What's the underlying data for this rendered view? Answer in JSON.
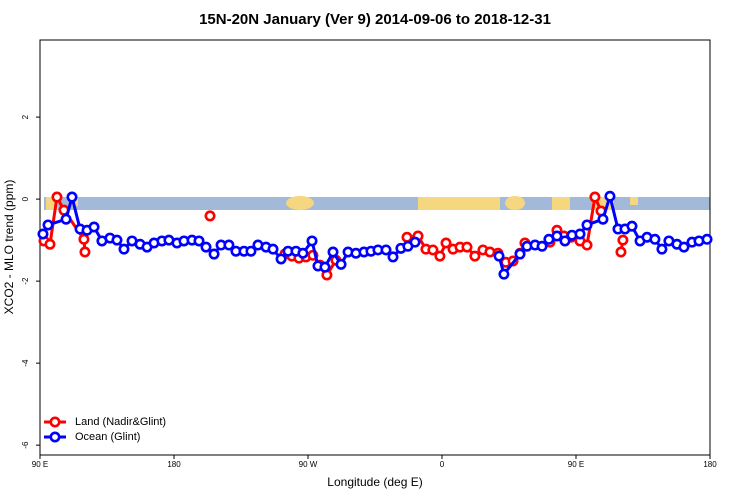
{
  "chart_data": {
    "type": "line",
    "title": "15N-20N January (Ver 9)   2014-09-06 to 2018-12-31",
    "x_label": "Longitude (deg E)",
    "y_label": "XCO2 - MLO trend (ppm)",
    "xlim": [
      90,
      540
    ],
    "ylim": [
      -6.24,
      3.88
    ],
    "xticks": [
      {
        "value": 90,
        "label": "90 E"
      },
      180,
      {
        "value": 270,
        "label": "90 W"
      },
      {
        "value": 360,
        "label": "0"
      },
      {
        "value": 450,
        "label": "90 E"
      },
      {
        "value": 540,
        "label": "180"
      }
    ],
    "yticks": [
      -6,
      -4,
      -2,
      0,
      2
    ],
    "legend": "bottom-left",
    "series": [
      {
        "name": "Land (Nadir&Glint)",
        "color": "#ff0000",
        "x": [
          92.7,
          96.7,
          101.4,
          106.1,
          119.5,
          120.2,
          150,
          204.2,
          250,
          254.5,
          259.2,
          263.9,
          268.6,
          273.3,
          278.0,
          282.7,
          288.8,
          320,
          336.5,
          343.9,
          349.2,
          353.9,
          358.6,
          362.7,
          367.4,
          372.1,
          376.8,
          382.1,
          387.5,
          392.2,
          397.6,
          402.9,
          407.7,
          412.4,
          415.7,
          430,
          432.5,
          437.2,
          441.9,
          446.6,
          452.7,
          457.4,
          462.7,
          466.8,
          470,
          480.2,
          481.5
        ],
        "values": [
          -1.02,
          -1.1,
          0.05,
          -0.27,
          -0.98,
          -1.29,
          null,
          -0.41,
          null,
          -1.34,
          -1.39,
          -1.44,
          -1.41,
          -1.37,
          -1.61,
          -1.85,
          -1.49,
          null,
          -0.93,
          -0.9,
          -1.22,
          -1.24,
          -1.39,
          -1.07,
          -1.22,
          -1.17,
          -1.17,
          -1.39,
          -1.24,
          -1.29,
          -1.32,
          -1.54,
          -1.51,
          -1.32,
          -1.07,
          null,
          -1.05,
          -0.76,
          -0.9,
          -0.93,
          -1.02,
          -1.12,
          0.05,
          -0.29,
          null,
          -1.29,
          -1.0
        ]
      },
      {
        "name": "Ocean (Glint)",
        "color": "#0000ff",
        "x": [
          92.0,
          95.4,
          107.5,
          111.5,
          116.9,
          121.6,
          126.3,
          131.6,
          137.0,
          141.7,
          146.4,
          151.8,
          157.2,
          161.9,
          166.6,
          171.9,
          176.6,
          182.0,
          186.7,
          192.1,
          196.8,
          201.5,
          206.9,
          211.6,
          216.9,
          221.6,
          227.0,
          231.7,
          236.4,
          241.8,
          246.5,
          251.9,
          256.6,
          261.9,
          266.6,
          272.7,
          276.7,
          281.4,
          286.8,
          292.2,
          296.9,
          302.2,
          307.6,
          312.3,
          317.0,
          322.4,
          327.1,
          332.4,
          337.1,
          341.9,
          380.0,
          398.3,
          401.6,
          412.4,
          417.1,
          422.5,
          427.2,
          431.8,
          437.2,
          442.6,
          447.3,
          452.7,
          457.4,
          468.1,
          472.8,
          478.2,
          482.9,
          487.6,
          493.0,
          497.7,
          503.0,
          507.7,
          512.4,
          517.8,
          522.5,
          527.9,
          532.6,
          538.0
        ],
        "values": [
          -0.85,
          -0.63,
          -0.49,
          0.05,
          -0.73,
          -0.76,
          -0.68,
          -1.02,
          -0.95,
          -1.0,
          -1.22,
          -1.02,
          -1.1,
          -1.17,
          -1.07,
          -1.02,
          -1.0,
          -1.07,
          -1.02,
          -1.0,
          -1.02,
          -1.17,
          -1.34,
          -1.12,
          -1.12,
          -1.27,
          -1.27,
          -1.27,
          -1.12,
          -1.17,
          -1.22,
          -1.46,
          -1.27,
          -1.27,
          -1.32,
          -1.02,
          -1.63,
          -1.66,
          -1.29,
          -1.59,
          -1.29,
          -1.32,
          -1.29,
          -1.27,
          -1.24,
          -1.24,
          -1.41,
          -1.2,
          -1.15,
          -1.05,
          null,
          -1.39,
          -1.83,
          -1.34,
          -1.15,
          -1.12,
          -1.15,
          -0.98,
          -0.9,
          -1.02,
          -0.88,
          -0.85,
          -0.63,
          -0.49,
          0.07,
          -0.73,
          -0.73,
          -0.66,
          -1.02,
          -0.93,
          -0.98,
          -1.22,
          -1.02,
          -1.1,
          -1.17,
          -1.05,
          -1.02,
          -0.98
        ]
      }
    ]
  }
}
